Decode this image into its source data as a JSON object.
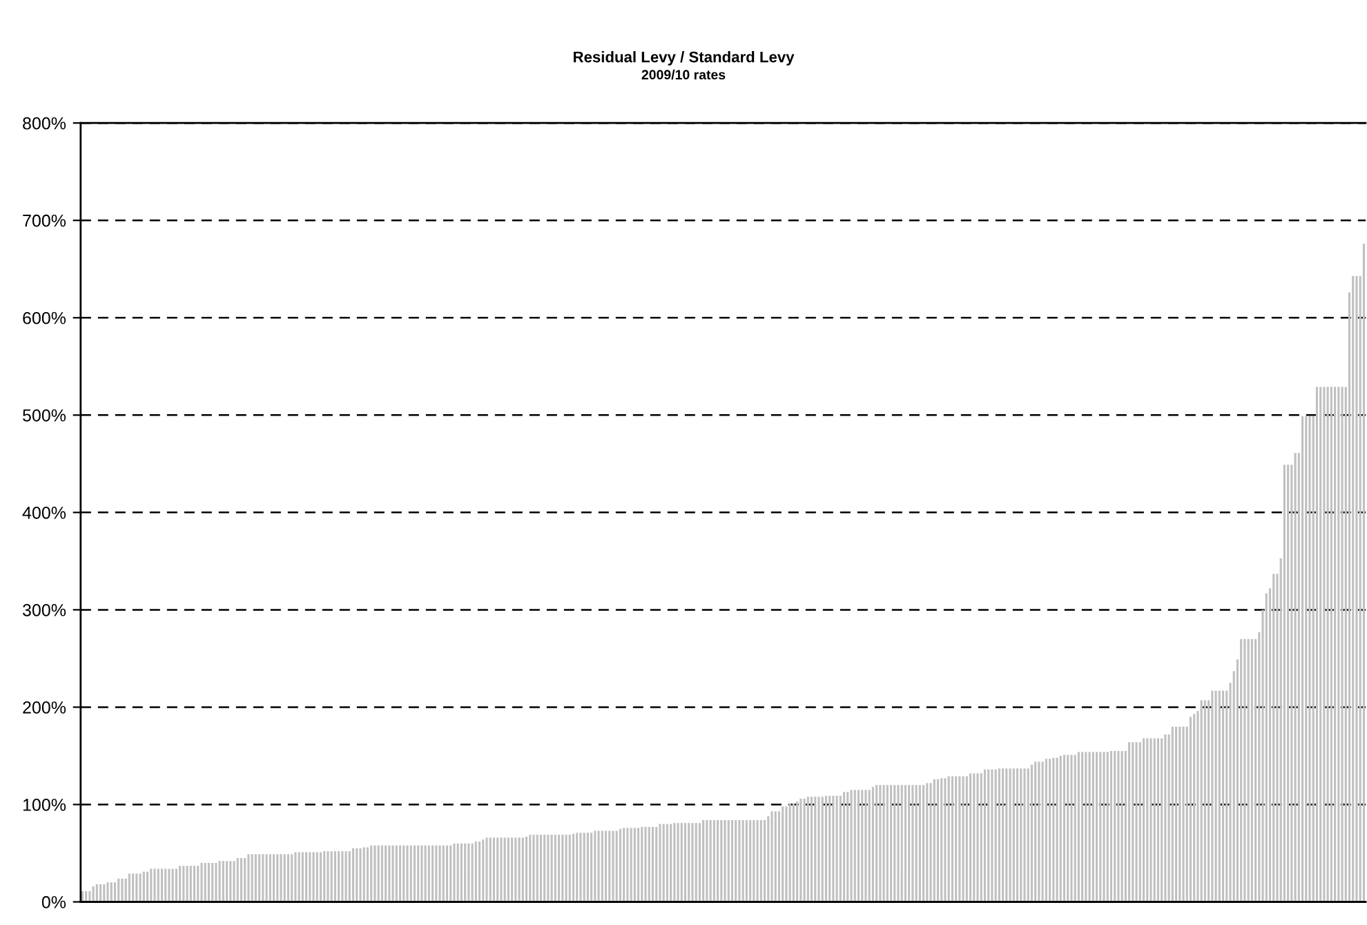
{
  "chart_data": {
    "type": "bar",
    "title": "Residual Levy / Standard Levy",
    "subtitle": "2009/10 rates",
    "color": "#c0c0c0",
    "ylim": [
      0,
      800
    ],
    "yticks": [
      {
        "value": 0,
        "label": "0%"
      },
      {
        "value": 100,
        "label": "100%"
      },
      {
        "value": 200,
        "label": "200%"
      },
      {
        "value": 300,
        "label": "300%"
      },
      {
        "value": 400,
        "label": "400%"
      },
      {
        "value": 500,
        "label": "500%"
      },
      {
        "value": 600,
        "label": "600%"
      },
      {
        "value": 700,
        "label": "700%"
      },
      {
        "value": 800,
        "label": "800%"
      }
    ],
    "grid": "y",
    "values": [
      11,
      11,
      11,
      16,
      18,
      18,
      18,
      20,
      20,
      20,
      24,
      24,
      24,
      29,
      29,
      29,
      29,
      31,
      31,
      34,
      34,
      34,
      34,
      34,
      34,
      34,
      34,
      37,
      37,
      37,
      37,
      37,
      37,
      40,
      40,
      40,
      40,
      40,
      42,
      42,
      42,
      42,
      42,
      45,
      45,
      45,
      49,
      49,
      49,
      49,
      49,
      49,
      49,
      49,
      49,
      49,
      49,
      49,
      49,
      51,
      51,
      51,
      51,
      51,
      51,
      51,
      51,
      52,
      52,
      52,
      52,
      52,
      52,
      52,
      52,
      55,
      55,
      55,
      56,
      56,
      58,
      58,
      58,
      58,
      58,
      58,
      58,
      58,
      58,
      58,
      58,
      58,
      58,
      58,
      58,
      58,
      58,
      58,
      58,
      58,
      58,
      58,
      58,
      60,
      60,
      60,
      60,
      60,
      60,
      62,
      62,
      64,
      66,
      66,
      66,
      66,
      66,
      66,
      66,
      66,
      66,
      66,
      66,
      67,
      69,
      69,
      69,
      69,
      69,
      69,
      69,
      69,
      69,
      69,
      69,
      69,
      70,
      71,
      71,
      71,
      71,
      71,
      73,
      73,
      73,
      73,
      73,
      73,
      73,
      75,
      76,
      76,
      76,
      76,
      76,
      77,
      77,
      77,
      77,
      77,
      80,
      80,
      80,
      80,
      81,
      81,
      81,
      81,
      81,
      81,
      81,
      81,
      84,
      84,
      84,
      84,
      84,
      84,
      84,
      84,
      84,
      84,
      84,
      84,
      84,
      84,
      84,
      84,
      84,
      84,
      88,
      93,
      93,
      93,
      98,
      98,
      101,
      101,
      103,
      106,
      106,
      108,
      108,
      108,
      108,
      108,
      109,
      109,
      109,
      109,
      109,
      113,
      113,
      115,
      115,
      115,
      115,
      115,
      115,
      118,
      120,
      120,
      120,
      120,
      120,
      120,
      120,
      120,
      120,
      120,
      120,
      120,
      120,
      120,
      122,
      122,
      126,
      126,
      127,
      127,
      129,
      129,
      129,
      129,
      129,
      129,
      132,
      132,
      132,
      132,
      136,
      136,
      136,
      136,
      137,
      137,
      137,
      137,
      137,
      137,
      137,
      137,
      137,
      141,
      144,
      144,
      144,
      147,
      147,
      148,
      148,
      150,
      151,
      151,
      151,
      151,
      154,
      154,
      154,
      154,
      154,
      154,
      154,
      154,
      154,
      155,
      155,
      155,
      155,
      155,
      164,
      164,
      164,
      164,
      168,
      168,
      168,
      168,
      168,
      168,
      172,
      172,
      180,
      180,
      180,
      180,
      180,
      190,
      193,
      196,
      207,
      207,
      207,
      217,
      217,
      217,
      217,
      217,
      225,
      237,
      249,
      270,
      270,
      270,
      270,
      270,
      277,
      300,
      317,
      322,
      337,
      337,
      353,
      449,
      449,
      449,
      461,
      461,
      499,
      499,
      499,
      499,
      529,
      529,
      529,
      529,
      529,
      529,
      529,
      529,
      529,
      626,
      643,
      643,
      643,
      676
    ]
  }
}
